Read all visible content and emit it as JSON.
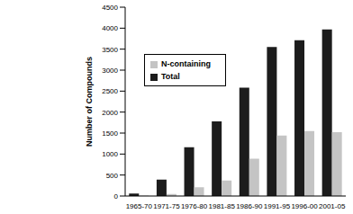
{
  "chart_data": {
    "type": "bar",
    "y_label": "Number of Compounds",
    "categories": [
      "1965-70",
      "1971-75",
      "1976-80",
      "1981-85",
      "1986-90",
      "1991-95",
      "1996-00",
      "2001-05"
    ],
    "series": [
      {
        "name": "Total",
        "color": "#1c1c1c",
        "values": [
          60,
          390,
          1160,
          1780,
          2580,
          3550,
          3710,
          3970
        ]
      },
      {
        "name": "N-containing",
        "color": "#c4c4c4",
        "values": [
          10,
          50,
          210,
          370,
          890,
          1440,
          1550,
          1520
        ]
      }
    ],
    "ylim": [
      0,
      4500
    ],
    "yticks": [
      0,
      500,
      1000,
      1500,
      2000,
      2500,
      3000,
      3500,
      4000,
      4500
    ],
    "grid": false,
    "legend": "upper left"
  }
}
